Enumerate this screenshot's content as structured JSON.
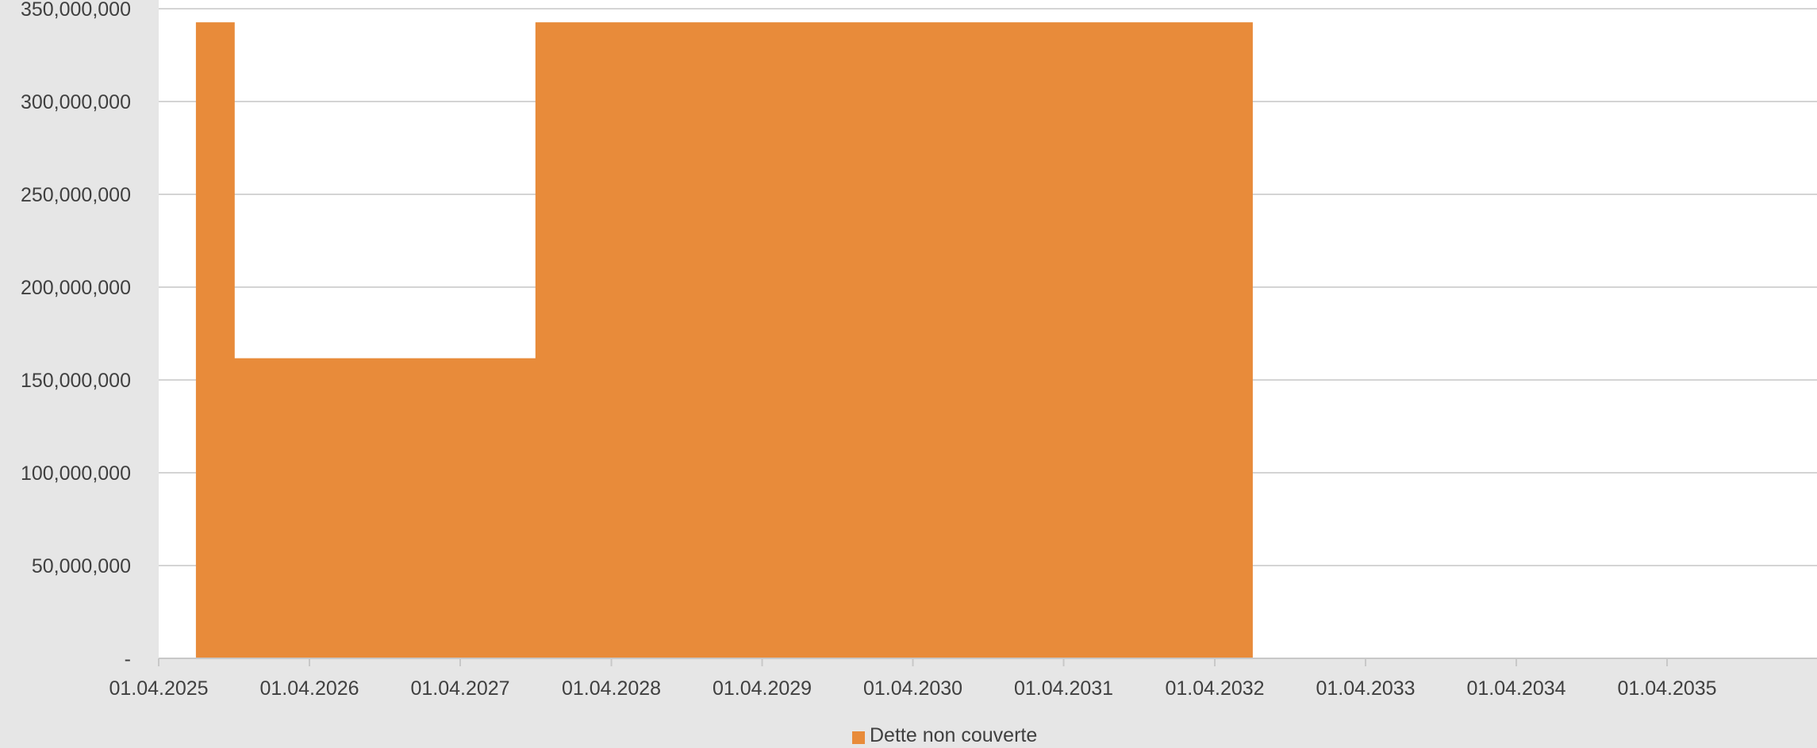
{
  "chart_data": {
    "type": "area",
    "title": "",
    "xlabel": "",
    "ylabel": "",
    "x_ticks": [
      "01.04.2025",
      "01.04.2026",
      "01.04.2027",
      "01.04.2028",
      "01.04.2029",
      "01.04.2030",
      "01.04.2031",
      "01.04.2032",
      "01.04.2033",
      "01.04.2034",
      "01.04.2035"
    ],
    "y_ticks": [
      {
        "value": 0,
        "label": "-"
      },
      {
        "value": 50000000,
        "label": "50,000,000"
      },
      {
        "value": 100000000,
        "label": "100,000,000"
      },
      {
        "value": 150000000,
        "label": "150,000,000"
      },
      {
        "value": 200000000,
        "label": "200,000,000"
      },
      {
        "value": 250000000,
        "label": "250,000,000"
      },
      {
        "value": 300000000,
        "label": "300,000,000"
      },
      {
        "value": 350000000,
        "label": "350,000,000"
      }
    ],
    "ylim": [
      0,
      350000000
    ],
    "xlim": [
      "01.04.2025",
      "01.04.2036"
    ],
    "grid": true,
    "legend": "bottom-center",
    "series": [
      {
        "name": "Dette non couverte",
        "color": "#e88b3a",
        "points": [
          {
            "x": "01.07.2025",
            "y": 0
          },
          {
            "x": "01.07.2025",
            "y": 342500000
          },
          {
            "x": "01.10.2025",
            "y": 342500000
          },
          {
            "x": "01.10.2025",
            "y": 161500000
          },
          {
            "x": "01.10.2027",
            "y": 161500000
          },
          {
            "x": "01.10.2027",
            "y": 342500000
          },
          {
            "x": "01.07.2032",
            "y": 342500000
          },
          {
            "x": "01.07.2032",
            "y": 0
          }
        ]
      }
    ]
  }
}
